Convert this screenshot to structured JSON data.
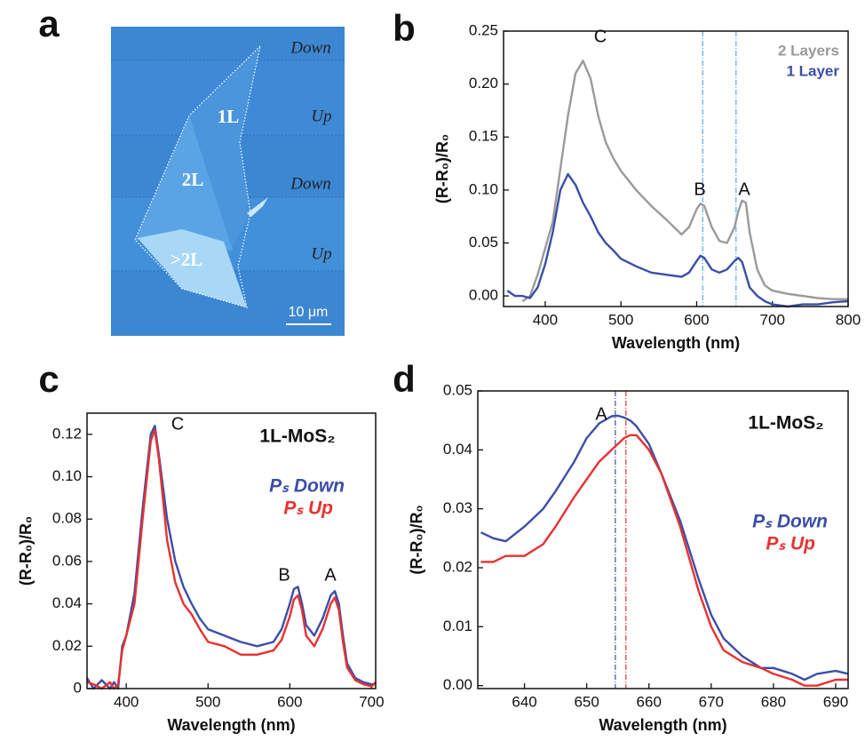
{
  "panel_labels": [
    "a",
    "b",
    "c",
    "d"
  ],
  "image": {
    "stripe_labels": [
      "Down",
      "Up",
      "Down",
      "Up"
    ],
    "flake_labels": [
      "1L",
      "2L",
      ">2L"
    ],
    "scale_bar": "10 μm"
  },
  "chart_data": [
    {
      "type": "line",
      "xlabel": "Wavelength (nm)",
      "ylabel": "(R-R₀)/R₀",
      "xlim": [
        345,
        800
      ],
      "ylim": [
        -0.01,
        0.25
      ],
      "xticks": [
        400,
        500,
        600,
        700,
        800
      ],
      "yticks": [
        {
          "value": 0,
          "label": "0.00"
        },
        0.05,
        {
          "value": 0.1,
          "label": "0.10"
        },
        0.15,
        {
          "value": 0.2,
          "label": "0.20"
        },
        0.25
      ],
      "annotations": [
        "C",
        "B",
        "A"
      ],
      "reference_lines": [
        {
          "x": 608,
          "color": "#5aa9e6"
        },
        {
          "x": 652,
          "color": "#5aa9e6"
        }
      ],
      "x": [
        350,
        360,
        370,
        380,
        390,
        400,
        410,
        420,
        430,
        440,
        450,
        460,
        470,
        480,
        490,
        500,
        520,
        540,
        560,
        580,
        590,
        600,
        605,
        610,
        620,
        630,
        640,
        650,
        655,
        660,
        665,
        670,
        680,
        690,
        700,
        720,
        740,
        760,
        780,
        800
      ],
      "series": [
        {
          "name": "2 Layers",
          "color": "#9a9a9a",
          "values": [
            null,
            null,
            -0.005,
            0.0,
            0.02,
            0.045,
            0.07,
            0.12,
            0.17,
            0.21,
            0.222,
            0.205,
            0.17,
            0.145,
            0.13,
            0.118,
            0.1,
            0.085,
            0.072,
            0.058,
            0.065,
            0.082,
            0.087,
            0.085,
            0.065,
            0.052,
            0.05,
            0.065,
            0.08,
            0.09,
            0.088,
            0.06,
            0.025,
            0.01,
            0.005,
            0.002,
            0.0,
            -0.002,
            -0.003,
            -0.003
          ]
        },
        {
          "name": "1 Layer",
          "color": "#3b4ea8",
          "values": [
            0.005,
            0.0,
            0.0,
            -0.002,
            0.008,
            0.03,
            0.06,
            0.1,
            0.115,
            0.105,
            0.088,
            0.075,
            0.06,
            0.05,
            0.043,
            0.035,
            0.028,
            0.022,
            0.02,
            0.018,
            0.022,
            0.033,
            0.038,
            0.036,
            0.025,
            0.022,
            0.025,
            0.033,
            0.036,
            0.032,
            0.02,
            0.008,
            0.0,
            -0.005,
            -0.008,
            -0.01,
            -0.008,
            -0.008,
            -0.006,
            -0.005
          ]
        }
      ]
    },
    {
      "type": "line",
      "xlabel": "Wavelength (nm)",
      "ylabel": "(R-R₀)/R₀",
      "label": "1L-MoS₂",
      "xlim": [
        352,
        705
      ],
      "ylim": [
        0,
        0.13
      ],
      "xticks": [
        400,
        500,
        600,
        700
      ],
      "yticks": [
        0,
        0.02,
        0.04,
        0.06,
        0.08,
        {
          "value": 0.1,
          "label": "0.10"
        },
        0.12
      ],
      "annotations": [
        "C",
        "B",
        "A"
      ],
      "x": [
        352,
        360,
        370,
        380,
        385,
        390,
        395,
        400,
        410,
        420,
        430,
        435,
        440,
        450,
        460,
        470,
        480,
        490,
        500,
        520,
        540,
        560,
        580,
        590,
        600,
        605,
        610,
        615,
        620,
        630,
        640,
        650,
        655,
        660,
        665,
        670,
        680,
        690,
        700,
        705
      ],
      "series": [
        {
          "name": "Pₛ Down",
          "color": "#3b4ea8",
          "values": [
            0.005,
            0.0,
            0.004,
            0.0,
            0.003,
            0.0,
            0.02,
            0.025,
            0.045,
            0.085,
            0.12,
            0.124,
            0.11,
            0.08,
            0.06,
            0.048,
            0.04,
            0.033,
            0.028,
            0.025,
            0.022,
            0.02,
            0.022,
            0.028,
            0.04,
            0.047,
            0.048,
            0.04,
            0.03,
            0.025,
            0.033,
            0.044,
            0.046,
            0.04,
            0.025,
            0.012,
            0.005,
            0.003,
            0.002,
            0.002
          ]
        },
        {
          "name": "Pₛ Up",
          "color": "#e8312f",
          "values": [
            0.003,
            0.002,
            0.0,
            0.003,
            0.0,
            0.002,
            0.018,
            0.025,
            0.04,
            0.08,
            0.117,
            0.122,
            0.108,
            0.07,
            0.05,
            0.04,
            0.035,
            0.028,
            0.022,
            0.02,
            0.016,
            0.016,
            0.018,
            0.023,
            0.034,
            0.042,
            0.044,
            0.037,
            0.025,
            0.02,
            0.028,
            0.04,
            0.043,
            0.037,
            0.022,
            0.01,
            0.004,
            0.002,
            0.001,
            0.003
          ]
        }
      ]
    },
    {
      "type": "line",
      "xlabel": "Wavelength (nm)",
      "ylabel": "(R-R₀)/R₀",
      "label": "1L-MoS₂",
      "xlim": [
        632.5,
        692
      ],
      "ylim": [
        -0.0005,
        0.05
      ],
      "xticks": [
        640,
        650,
        660,
        670,
        680,
        690
      ],
      "yticks": [
        {
          "value": 0,
          "label": "0.00"
        },
        0.01,
        0.02,
        0.03,
        0.04,
        0.05
      ],
      "annotations": [
        "A"
      ],
      "reference_lines": [
        {
          "x": 654.6,
          "color": "#3b4ea8"
        },
        {
          "x": 656.3,
          "color": "#e8312f"
        }
      ],
      "x": [
        633,
        635,
        637,
        640,
        643,
        645,
        648,
        650,
        652,
        654,
        655,
        656,
        657,
        658,
        660,
        662,
        665,
        668,
        670,
        672,
        675,
        678,
        680,
        683,
        685,
        687,
        690,
        692
      ],
      "series": [
        {
          "name": "Pₛ Down",
          "color": "#3b4ea8",
          "values": [
            0.026,
            0.025,
            0.0245,
            0.027,
            0.03,
            0.033,
            0.038,
            0.042,
            0.0445,
            0.0457,
            0.0458,
            0.0455,
            0.045,
            0.044,
            0.041,
            0.036,
            0.028,
            0.018,
            0.012,
            0.008,
            0.005,
            0.003,
            0.003,
            0.002,
            0.001,
            0.002,
            0.0025,
            0.002
          ]
        },
        {
          "name": "Pₛ Up",
          "color": "#e8312f",
          "values": [
            0.021,
            0.021,
            0.022,
            0.022,
            0.024,
            0.027,
            0.032,
            0.035,
            0.038,
            0.04,
            0.041,
            0.042,
            0.0425,
            0.0425,
            0.04,
            0.036,
            0.027,
            0.016,
            0.01,
            0.006,
            0.004,
            0.003,
            0.002,
            0.001,
            0.0,
            0.0,
            0.001,
            0.001
          ]
        }
      ]
    }
  ]
}
